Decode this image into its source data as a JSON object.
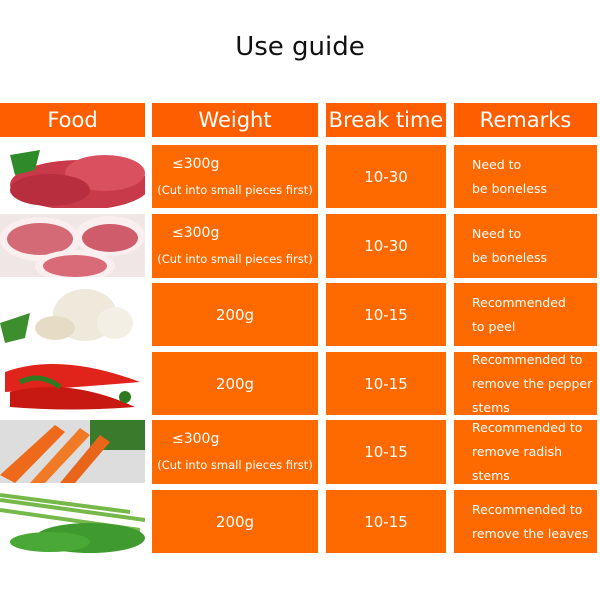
{
  "title": "Use guide",
  "headers": [
    "Food",
    "Weight",
    "Break time",
    "Remarks"
  ],
  "colors": {
    "cell": "#ff6a00",
    "header": "#ff5e00"
  },
  "rows": [
    {
      "image": "beef",
      "weight": "≤300g",
      "weight_note": "(Cut into small pieces first)",
      "break_time": "10-30",
      "remarks": [
        "Need to",
        "be boneless"
      ]
    },
    {
      "image": "pork",
      "weight": "≤300g",
      "weight_note": "(Cut into small pieces first)",
      "break_time": "10-30",
      "remarks": [
        "Need to",
        "be boneless"
      ]
    },
    {
      "image": "garlic",
      "weight": "200g",
      "weight_note": "",
      "break_time": "10-15",
      "remarks": [
        "Recommended",
        "to peel"
      ]
    },
    {
      "image": "red-pepper",
      "weight": "200g",
      "weight_note": "",
      "break_time": "10-15",
      "remarks": [
        "Recommended to",
        "remove the pepper",
        "stems"
      ]
    },
    {
      "image": "carrot",
      "weight": "≤300g",
      "weight_note": "(Cut into small pieces first)",
      "break_time": "10-15",
      "remarks": [
        "Recommended to",
        "remove radish",
        "stems"
      ]
    },
    {
      "image": "celery",
      "weight": "200g",
      "weight_note": "",
      "break_time": "10-15",
      "remarks": [
        "Recommended to",
        "remove the leaves"
      ]
    }
  ]
}
